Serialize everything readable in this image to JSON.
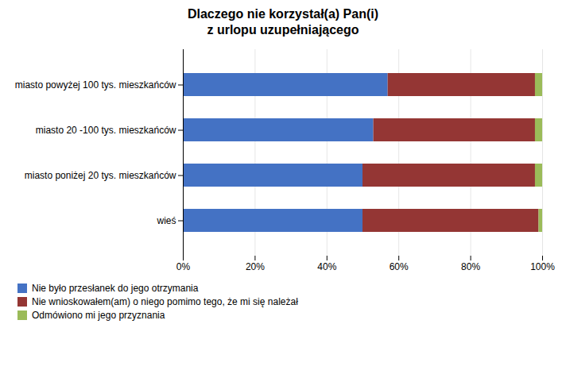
{
  "chart_data": {
    "type": "bar",
    "orientation": "horizontal",
    "stacked": true,
    "title": "Dlaczego nie korzystał(a) Pan(i)\nz urlopu uzupełniającego",
    "categories": [
      "miasto powyżej 100 tys. mieszkańców",
      "miasto 20 -100 tys. mieszkańców",
      "miasto poniżej 20 tys. mieszkańców",
      "wieś"
    ],
    "series": [
      {
        "name": "Nie było przesłanek do jego otrzymania",
        "color": "#4472C4",
        "values": [
          57,
          53,
          50,
          50
        ]
      },
      {
        "name": "Nie wnioskowałem(am) o niego pomimo tego, że mi się należał",
        "color": "#943634",
        "values": [
          41,
          45,
          48,
          49
        ]
      },
      {
        "name": "Odmówiono mi jego przyznania",
        "color": "#9BBB59",
        "values": [
          2,
          2,
          2,
          1
        ]
      }
    ],
    "xlim": [
      0,
      100
    ],
    "xticks": [
      {
        "value": 0,
        "label": "0%"
      },
      {
        "value": 20,
        "label": "20%"
      },
      {
        "value": 40,
        "label": "40%"
      },
      {
        "value": 60,
        "label": "60%"
      },
      {
        "value": 80,
        "label": "80%"
      },
      {
        "value": 100,
        "label": "100%"
      }
    ],
    "grid": true,
    "legend": "bottom"
  }
}
